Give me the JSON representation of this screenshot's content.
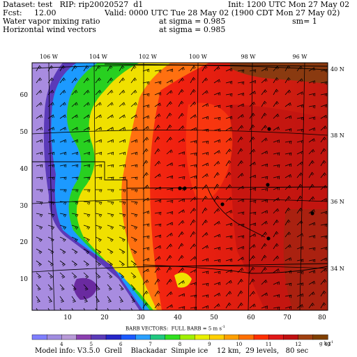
{
  "header": {
    "line1_left": "Dataset: test   RIP: rip20020527  d1",
    "line1_right": "Init: 1200 UTC Mon 27 May 02",
    "line2_left": "Fcst:     12.00",
    "line2_right": "Valid: 0000 UTC Tue 28 May 02 (1900 CDT Mon 27 May 02)",
    "line3_left": "Water vapor mixing ratio",
    "line3_mid": "at sigma = 0.985",
    "line3_right": "sm= 1",
    "line4_left": "Horizontal wind vectors",
    "line4_mid": "at sigma = 0.985"
  },
  "map": {
    "lon_labels": [
      "106 W",
      "104 W",
      "102 W",
      "100 W",
      "98 W",
      "96 W"
    ],
    "lat_labels": [
      "40 N",
      "38 N",
      "36 N",
      "34 N"
    ],
    "y_grid_ticks": [
      "60",
      "50",
      "40",
      "30",
      "20",
      "10"
    ],
    "x_grid_ticks": [
      "10",
      "20",
      "30",
      "40",
      "50",
      "60",
      "70",
      "80"
    ]
  },
  "legend": {
    "barb_title": "BARB VECTORS:  FULL BARB = 5 m s",
    "barb_unit_sup": "-1",
    "values": [
      "4",
      "5",
      "6",
      "7",
      "8",
      "9",
      "10",
      "11",
      "12",
      "13"
    ],
    "unit": "g kg",
    "unit_sup": "-1",
    "colors": [
      "#7f7fff",
      "#a08ce0",
      "#b89ad8",
      "#8b3fb0",
      "#5b3ab8",
      "#2626c8",
      "#1c5aff",
      "#2aa0ff",
      "#20c880",
      "#30e020",
      "#a0f000",
      "#e8f000",
      "#ffd000",
      "#ffa000",
      "#ff7000",
      "#ff3000",
      "#e01818",
      "#c01010",
      "#a04010",
      "#804000"
    ]
  },
  "footer": {
    "text": "Model info: V3.5.0  Grell    Blackadar  Simple ice    12 km,  29 levels,   80 sec"
  }
}
